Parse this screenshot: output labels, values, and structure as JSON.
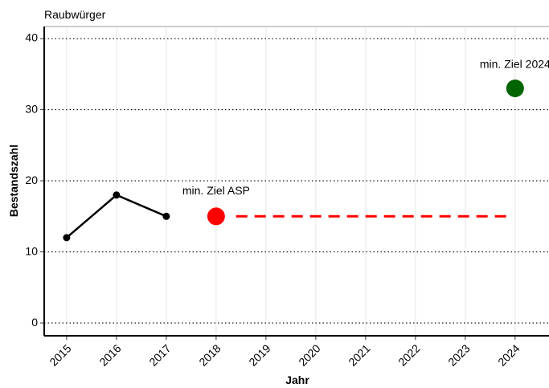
{
  "chart_data": {
    "type": "line",
    "title": "Raubwürger",
    "x_label": "Jahr",
    "y_label": "Bestandszahl",
    "xlim": [
      2014.55,
      2024.68
    ],
    "xticks": [
      2015,
      2016,
      2017,
      2018,
      2019,
      2020,
      2021,
      2022,
      2023,
      2024
    ],
    "ylim": [
      -1.8,
      41.7
    ],
    "yticks": [
      0,
      10,
      20,
      30,
      40
    ],
    "grid": true,
    "series": [
      {
        "style": "line-points",
        "color": "#000000",
        "x": [
          2015,
          2016,
          2017
        ],
        "values": [
          12,
          18,
          15
        ]
      },
      {
        "style": "dashed",
        "color": "#ff0000",
        "x": [
          2018.4,
          2023.85
        ],
        "values": [
          15,
          15
        ]
      },
      {
        "style": "big-point",
        "color": "#ff0000",
        "x": [
          2018
        ],
        "values": [
          15
        ]
      },
      {
        "style": "big-point",
        "color": "#006400",
        "x": [
          2024
        ],
        "values": [
          33
        ]
      }
    ],
    "annotations": [
      {
        "text": "min. Ziel ASP",
        "x": 2018,
        "y": 18.5
      },
      {
        "text": "min. Ziel 2024",
        "x": 2024,
        "y": 36.3
      }
    ]
  }
}
